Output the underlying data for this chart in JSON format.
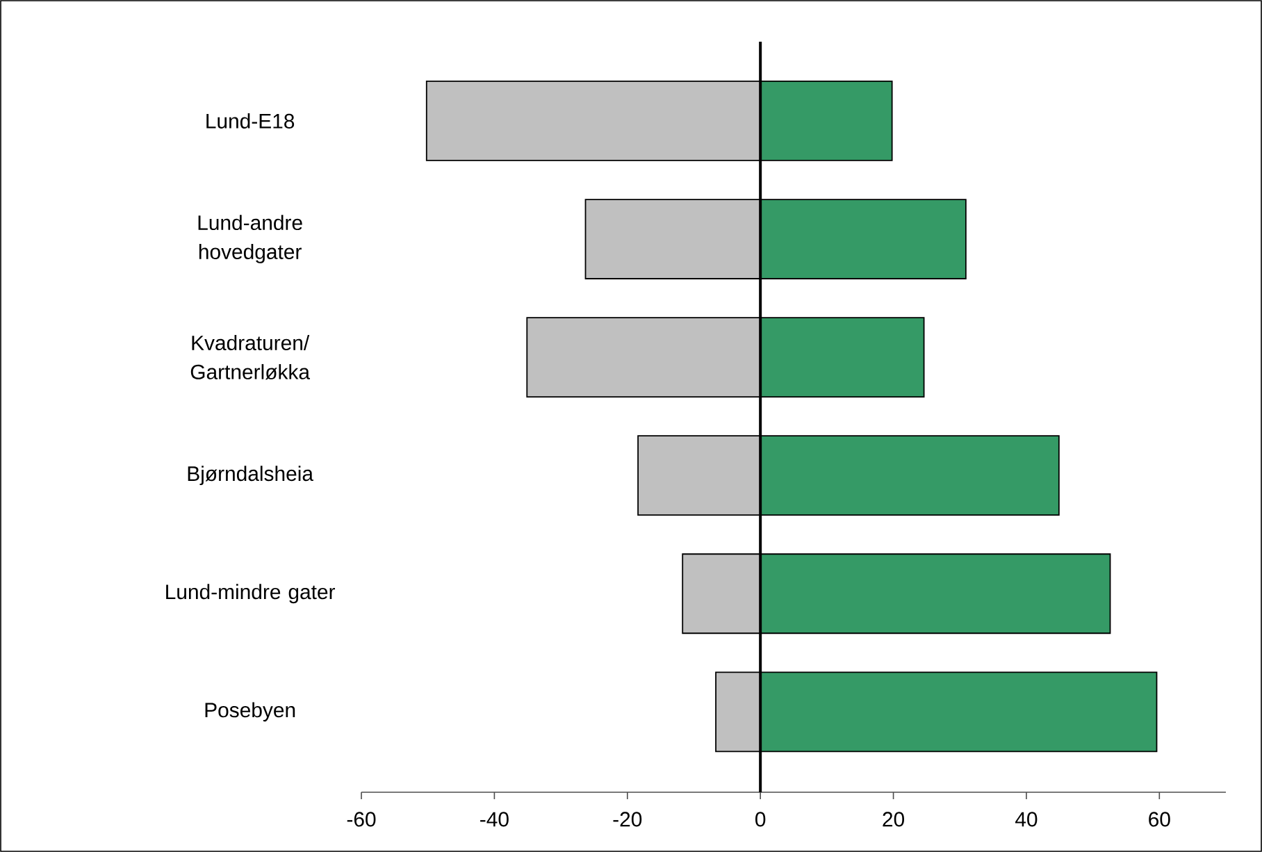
{
  "chart_data": {
    "type": "bar",
    "orientation": "horizontal",
    "categories": [
      "Lund-E18",
      "Lund-andre hovedgater",
      "Kvadraturen/ Gartnerløkka",
      "Bjørndalsheia",
      "Lund-mindre gater",
      "Posebyen"
    ],
    "series": [
      {
        "color": "#c0c0c0",
        "values": [
          -50.2,
          -26.3,
          -35.1,
          -18.4,
          -11.7,
          -6.7
        ]
      },
      {
        "color": "#359a66",
        "values": [
          19.8,
          30.9,
          24.6,
          44.9,
          52.6,
          59.6
        ]
      }
    ],
    "xlim": [
      -60,
      70
    ],
    "xticks": [
      -60,
      -40,
      -20,
      0,
      20,
      40,
      60
    ],
    "ref_lines": [
      {
        "axis": "x",
        "value": 0
      }
    ],
    "stacked": true,
    "grid": false
  }
}
